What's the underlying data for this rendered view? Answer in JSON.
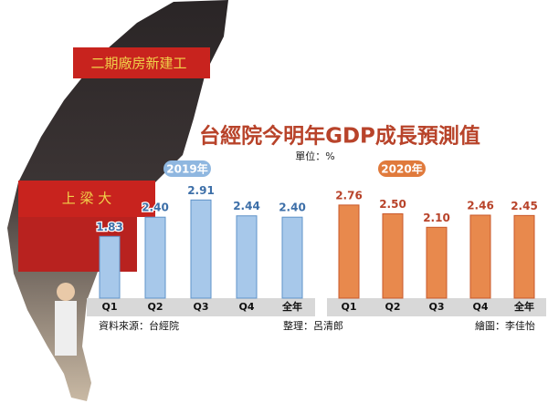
{
  "header": {
    "title": "台經院今明年GDP成長預測值",
    "unit": "單位：%"
  },
  "photo_text": [
    "二期廠房新建工",
    "上 梁 大"
  ],
  "chart_data": [
    {
      "type": "bar",
      "title": "2019年",
      "color": "#a7c8ea",
      "edge": "#5f93c9",
      "categories": [
        "Q1",
        "Q2",
        "Q3",
        "Q4",
        "全年"
      ],
      "values": [
        1.83,
        2.4,
        2.91,
        2.44,
        2.4
      ],
      "value_labels": [
        "1.83",
        "2.40",
        "2.91",
        "2.44",
        "2.40"
      ]
    },
    {
      "type": "bar",
      "title": "2020年",
      "color": "#e8894d",
      "edge": "#c9582a",
      "categories": [
        "Q1",
        "Q2",
        "Q3",
        "Q4",
        "全年"
      ],
      "values": [
        2.76,
        2.5,
        2.1,
        2.46,
        2.45
      ],
      "value_labels": [
        "2.76",
        "2.50",
        "2.10",
        "2.46",
        "2.45"
      ]
    }
  ],
  "footer": {
    "source": "資料來源：台經院",
    "editor": "整理：呂清郎",
    "artist": "繪圖：李佳怡"
  }
}
